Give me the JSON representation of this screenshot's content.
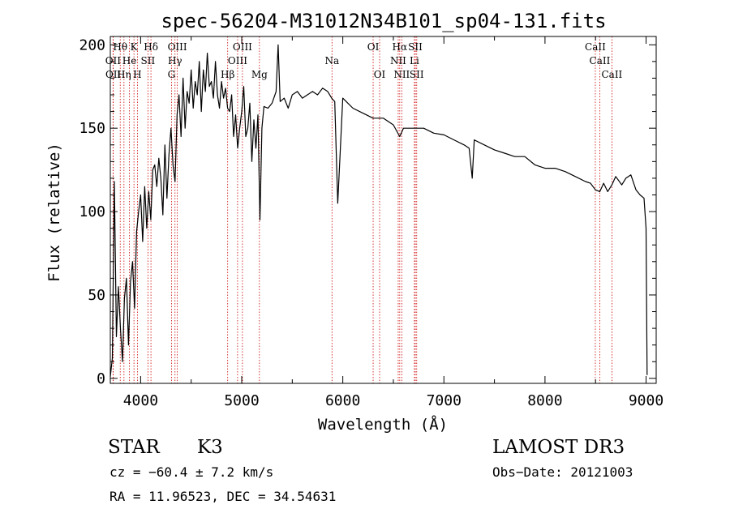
{
  "chart_data": {
    "type": "line",
    "title": "spec-56204-M31012N34B101_sp04-131.fits",
    "xlabel": "Wavelength (Å)",
    "ylabel": "Flux (relative)",
    "xlim": [
      3700,
      9100
    ],
    "ylim": [
      -3,
      205
    ],
    "xticks": [
      4000,
      5000,
      6000,
      7000,
      8000,
      9000
    ],
    "yticks": [
      0,
      50,
      100,
      150,
      200
    ],
    "series": [
      {
        "name": "flux",
        "x": [
          3700,
          3720,
          3740,
          3760,
          3780,
          3800,
          3820,
          3840,
          3860,
          3880,
          3900,
          3920,
          3940,
          3960,
          3980,
          4000,
          4020,
          4040,
          4060,
          4080,
          4100,
          4120,
          4140,
          4160,
          4180,
          4200,
          4220,
          4240,
          4260,
          4280,
          4300,
          4320,
          4340,
          4360,
          4380,
          4400,
          4420,
          4440,
          4460,
          4480,
          4500,
          4520,
          4540,
          4560,
          4580,
          4600,
          4620,
          4640,
          4660,
          4680,
          4700,
          4720,
          4740,
          4760,
          4780,
          4800,
          4820,
          4840,
          4860,
          4880,
          4900,
          4920,
          4940,
          4960,
          4980,
          5000,
          5020,
          5040,
          5060,
          5080,
          5100,
          5120,
          5140,
          5160,
          5180,
          5200,
          5220,
          5260,
          5300,
          5340,
          5360,
          5380,
          5420,
          5460,
          5500,
          5550,
          5600,
          5650,
          5700,
          5750,
          5800,
          5850,
          5890,
          5920,
          5950,
          6000,
          6100,
          6200,
          6300,
          6400,
          6500,
          6563,
          6600,
          6700,
          6800,
          6900,
          7000,
          7100,
          7200,
          7250,
          7280,
          7300,
          7400,
          7500,
          7600,
          7700,
          7800,
          7900,
          8000,
          8100,
          8200,
          8300,
          8400,
          8450,
          8500,
          8542,
          8580,
          8620,
          8662,
          8700,
          8760,
          8800,
          8850,
          8900,
          8940,
          8980,
          9000,
          9010
        ],
        "values": [
          1,
          12,
          118,
          25,
          55,
          30,
          10,
          48,
          60,
          20,
          58,
          70,
          42,
          88,
          100,
          110,
          82,
          115,
          90,
          112,
          95,
          125,
          128,
          115,
          132,
          120,
          98,
          140,
          108,
          134,
          150,
          128,
          118,
          158,
          170,
          145,
          180,
          150,
          172,
          165,
          185,
          162,
          178,
          170,
          190,
          160,
          185,
          172,
          195,
          175,
          178,
          168,
          190,
          170,
          162,
          178,
          168,
          174,
          162,
          160,
          170,
          145,
          158,
          138,
          150,
          160,
          175,
          145,
          150,
          165,
          130,
          155,
          138,
          158,
          95,
          150,
          163,
          162,
          165,
          172,
          200,
          166,
          168,
          162,
          170,
          172,
          168,
          170,
          172,
          170,
          174,
          172,
          168,
          166,
          105,
          168,
          162,
          159,
          156,
          156,
          152,
          145,
          150,
          150,
          150,
          147,
          146,
          143,
          140,
          138,
          120,
          143,
          140,
          137,
          135,
          133,
          133,
          128,
          126,
          126,
          124,
          121,
          118,
          117,
          113,
          112,
          117,
          112,
          116,
          121,
          116,
          120,
          122,
          113,
          110,
          108,
          90,
          2
        ]
      }
    ],
    "spectral_lines": [
      {
        "label": "Hθ",
        "x": 3798,
        "row": 1
      },
      {
        "label": "K",
        "x": 3934,
        "row": 1
      },
      {
        "label": "Hδ",
        "x": 4102,
        "row": 1
      },
      {
        "label": "OIII",
        "x": 4363,
        "row": 1
      },
      {
        "label": "OIII",
        "x": 5007,
        "row": 1
      },
      {
        "label": "OI",
        "x": 6300,
        "row": 1
      },
      {
        "label": "Hα",
        "x": 6563,
        "row": 1
      },
      {
        "label": "SII",
        "x": 6717,
        "row": 1
      },
      {
        "label": "CaII",
        "x": 8498,
        "row": 1
      },
      {
        "label": "OII",
        "x": 3727,
        "row": 2
      },
      {
        "label": "He",
        "x": 3889,
        "row": 2
      },
      {
        "label": "SII",
        "x": 4072,
        "row": 2
      },
      {
        "label": "Hγ",
        "x": 4340,
        "row": 2
      },
      {
        "label": "OIII",
        "x": 4959,
        "row": 2
      },
      {
        "label": "Na",
        "x": 5893,
        "row": 2
      },
      {
        "label": "NII",
        "x": 6548,
        "row": 2
      },
      {
        "label": "Li",
        "x": 6708,
        "row": 2
      },
      {
        "label": "CaII",
        "x": 8542,
        "row": 2
      },
      {
        "label": "OII",
        "x": 3729,
        "row": 3
      },
      {
        "label": "Hη",
        "x": 3835,
        "row": 3
      },
      {
        "label": "H",
        "x": 3968,
        "row": 3
      },
      {
        "label": "G",
        "x": 4305,
        "row": 3
      },
      {
        "label": "Hβ",
        "x": 4861,
        "row": 3
      },
      {
        "label": "Mg",
        "x": 5175,
        "row": 3
      },
      {
        "label": "OI",
        "x": 6364,
        "row": 3
      },
      {
        "label": "NII",
        "x": 6583,
        "row": 3
      },
      {
        "label": "SII",
        "x": 6731,
        "row": 3
      },
      {
        "label": "CaII",
        "x": 8662,
        "row": 3
      }
    ],
    "colors": {
      "spectrum": "#000000",
      "lines": "#cc0000",
      "axes": "#000000"
    }
  },
  "info": {
    "object_class": "STAR",
    "subclass": "K3",
    "survey": "LAMOST DR3",
    "redshift_line": "cz = −60.4 ± 7.2 km/s",
    "obs_date_line": "Obs−Date: 20121003",
    "coords_line": "RA =  11.96523, DEC =  34.54631"
  }
}
